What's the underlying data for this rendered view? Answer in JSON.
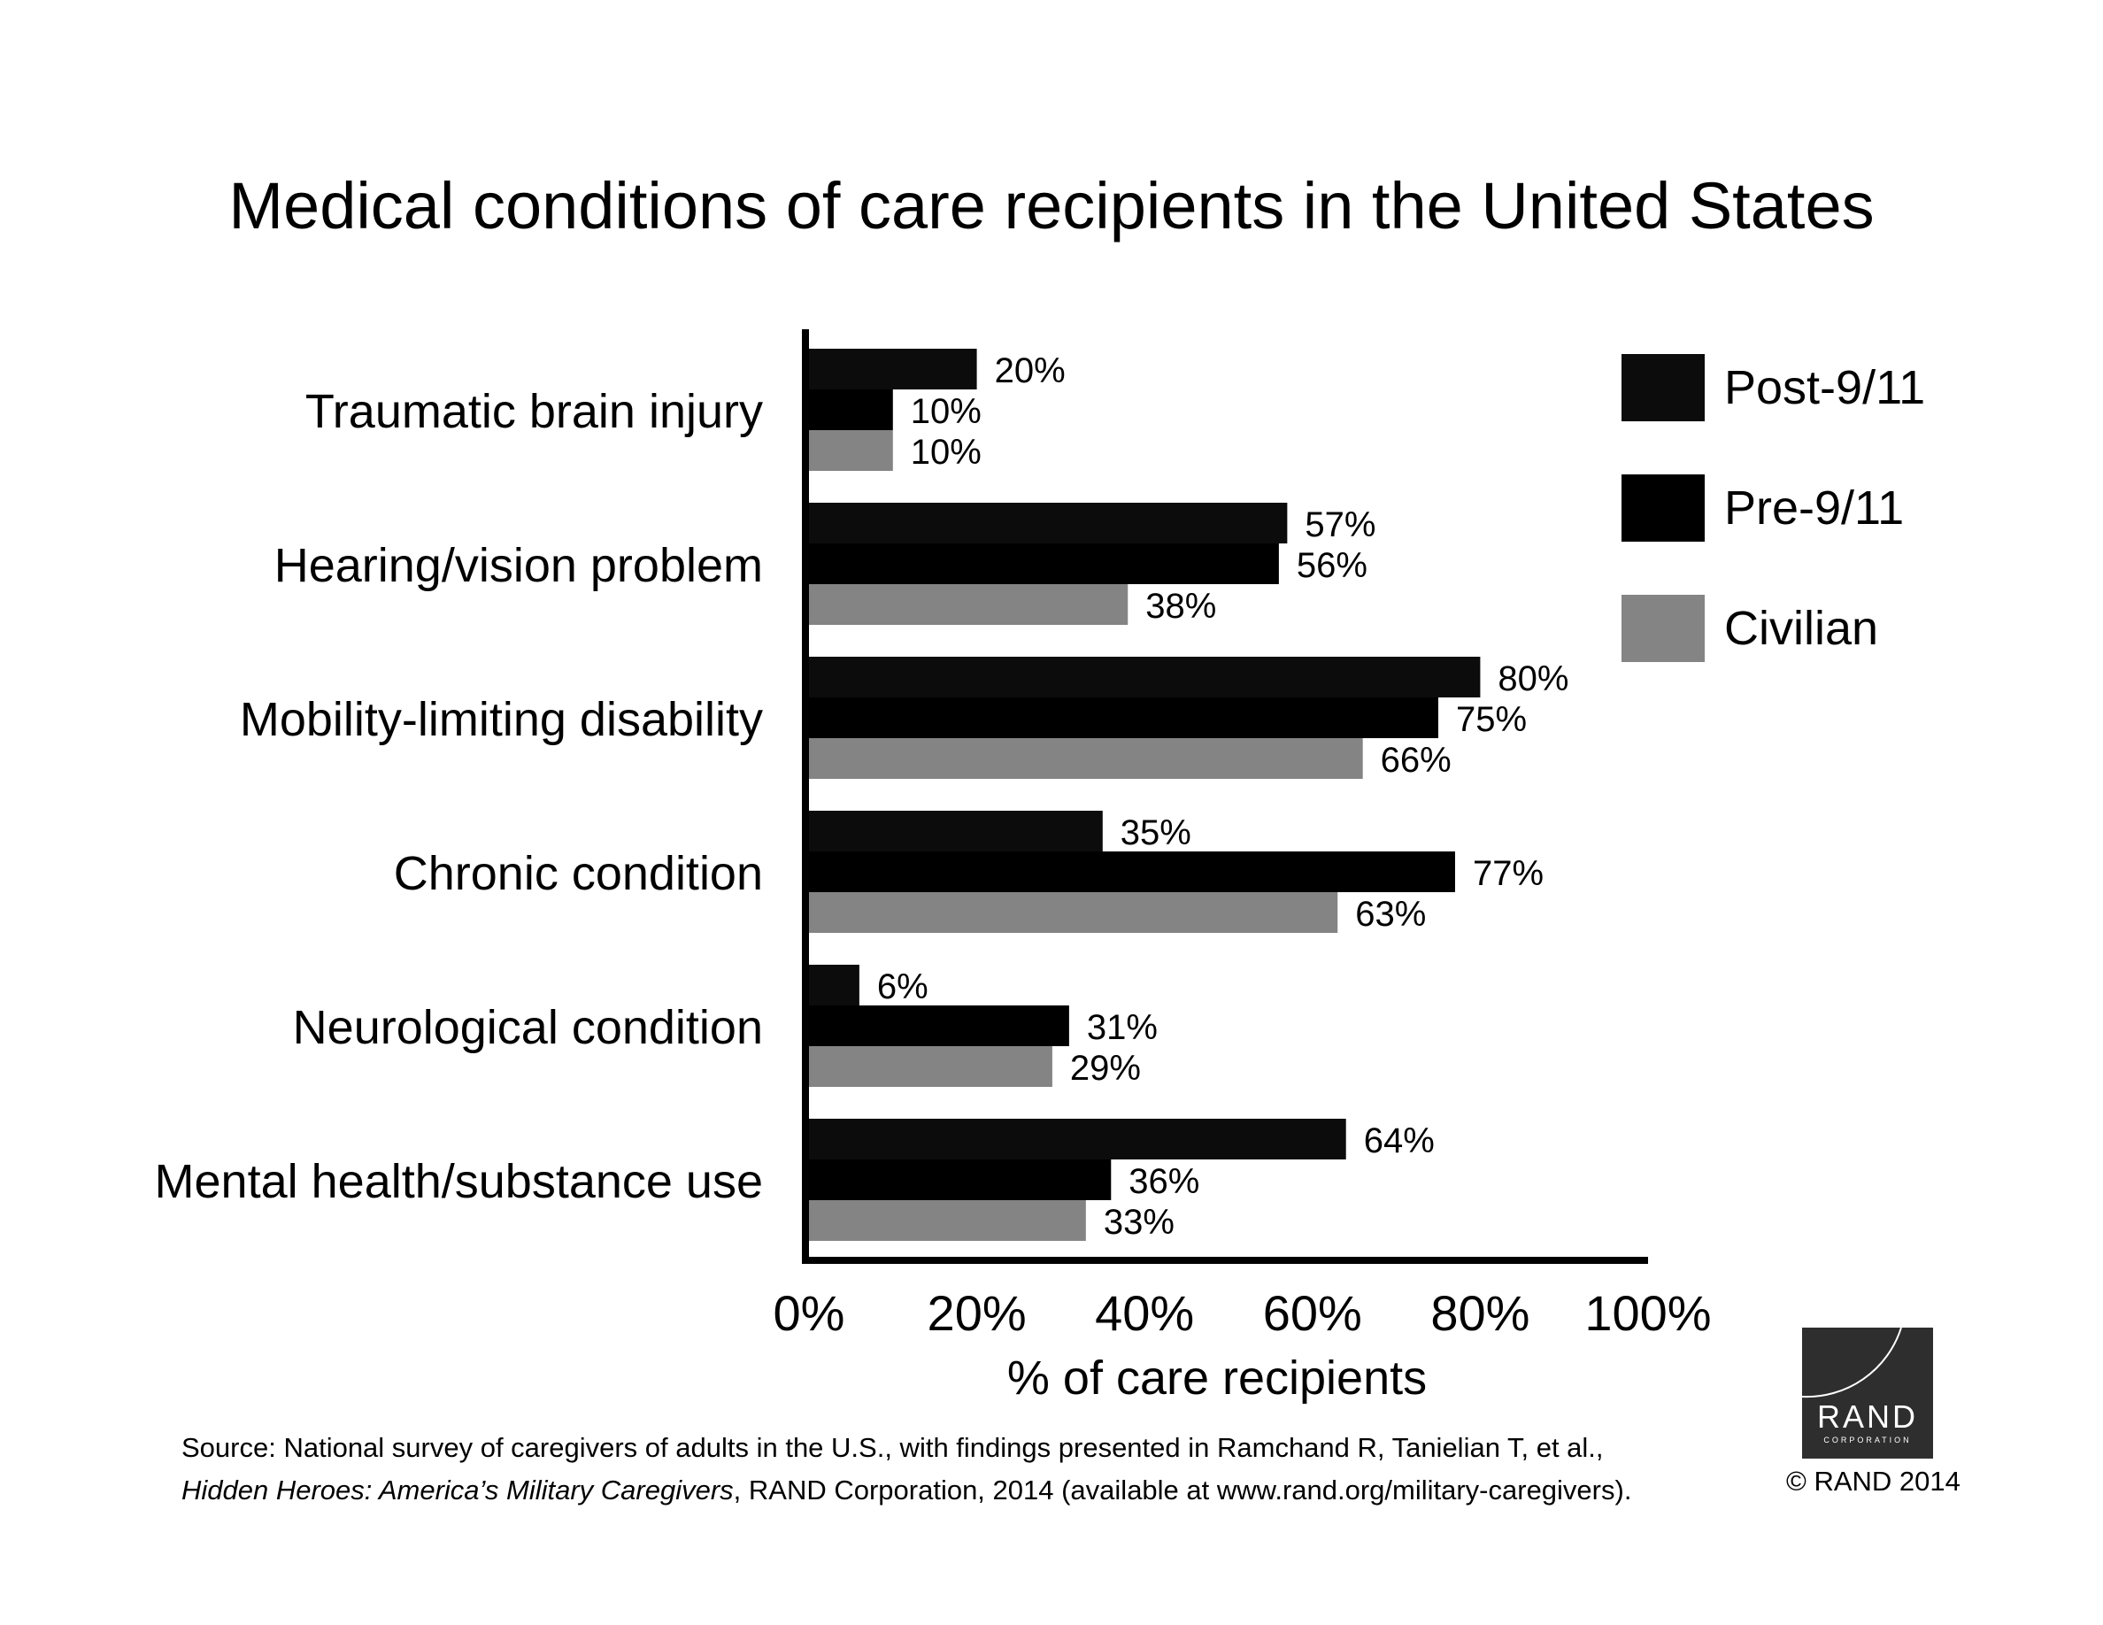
{
  "chart_data": {
    "type": "bar",
    "orientation": "horizontal",
    "title": "Medical conditions of care recipients in the United States",
    "xlabel": "% of care recipients",
    "ylabel": "",
    "xlim": [
      0,
      100
    ],
    "xticks": [
      "0%",
      "20%",
      "40%",
      "60%",
      "80%",
      "100%"
    ],
    "categories": [
      "Traumatic brain injury",
      "Hearing/vision problem",
      "Mobility-limiting disability",
      "Chronic condition",
      "Neurological condition",
      "Mental health/substance use"
    ],
    "series": [
      {
        "name": "Post-9/11",
        "color": "#0c0c0c",
        "values": [
          20,
          57,
          80,
          35,
          6,
          64
        ],
        "labels": [
          "20%",
          "57%",
          "80%",
          "35%",
          "6%",
          "64%"
        ]
      },
      {
        "name": "Pre-9/11",
        "color": "#000000",
        "values": [
          10,
          56,
          75,
          77,
          31,
          36
        ],
        "labels": [
          "10%",
          "56%",
          "75%",
          "77%",
          "31%",
          "36%"
        ]
      },
      {
        "name": "Civilian",
        "color": "#848484",
        "values": [
          10,
          38,
          66,
          63,
          29,
          33
        ],
        "labels": [
          "10%",
          "38%",
          "66%",
          "63%",
          "29%",
          "33%"
        ]
      }
    ],
    "legend_position": "top-right",
    "grid": false
  },
  "footer": {
    "source_line1": "Source: National survey of caregivers of adults in the U.S., with findings presented in Ramchand R, Tanielian T, et al.,",
    "source_book": "Hidden Heroes: America’s Military Caregivers",
    "source_rest": ", RAND Corporation, 2014 (available at www.rand.org/military-caregivers).",
    "copyright": "© RAND 2014"
  },
  "logo": {
    "word": "RAND",
    "sub": "CORPORATION"
  }
}
